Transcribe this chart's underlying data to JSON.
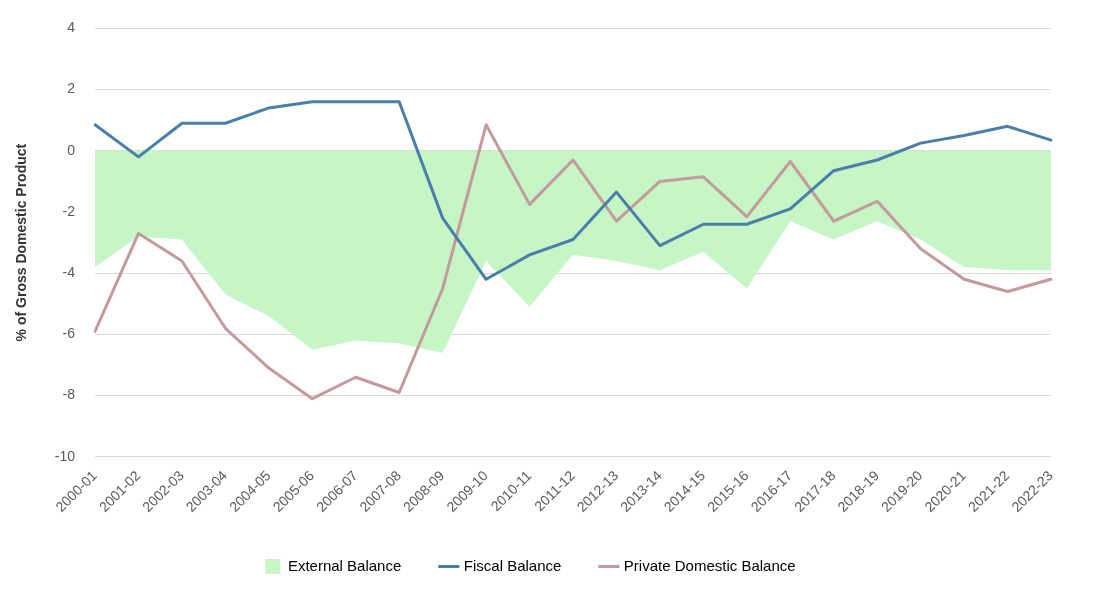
{
  "chart_data": {
    "type": "line",
    "ylabel": "% of Gross Domestic Product",
    "categories": [
      "2000-01",
      "2001-02",
      "2002-03",
      "2003-04",
      "2004-05",
      "2005-06",
      "2006-07",
      "2007-08",
      "2008-09",
      "2009-10",
      "2010-11",
      "2011-12",
      "2012-13",
      "2013-14",
      "2014-15",
      "2015-16",
      "2016-17",
      "2017-18",
      "2018-19",
      "2019-20",
      "2020-21",
      "2021-22",
      "2022-23"
    ],
    "series": [
      {
        "name": "External Balance",
        "type": "area",
        "color": "#c6f5c6",
        "values": [
          -3.8,
          -2.8,
          -2.9,
          -4.7,
          -5.4,
          -6.5,
          -6.2,
          -6.3,
          -6.6,
          -3.6,
          -5.1,
          -3.4,
          -3.6,
          -3.9,
          -3.3,
          -4.5,
          -2.3,
          -2.9,
          -2.3,
          -2.9,
          -3.8,
          -3.9,
          -3.9
        ]
      },
      {
        "name": "Fiscal Balance",
        "type": "line",
        "color": "#4a7eab",
        "values": [
          0.85,
          -0.2,
          0.9,
          0.9,
          1.4,
          1.6,
          1.6,
          1.6,
          -2.2,
          -4.2,
          -3.4,
          -2.9,
          -1.35,
          -3.1,
          -2.4,
          -2.4,
          -1.9,
          -0.65,
          -0.3,
          0.25,
          0.5,
          0.8,
          0.35
        ]
      },
      {
        "name": "Private Domestic Balance",
        "type": "line",
        "color": "#c49a9a",
        "values": [
          -5.9,
          -2.7,
          -3.6,
          -5.8,
          -7.1,
          -8.1,
          -7.4,
          -7.9,
          -4.5,
          0.85,
          -1.75,
          -0.3,
          -2.3,
          -1.0,
          -0.85,
          -2.15,
          -0.35,
          -2.3,
          -1.65,
          -3.2,
          -4.2,
          -4.6,
          -4.2
        ]
      }
    ],
    "ylim": [
      -10,
      4
    ],
    "yticks": [
      -10,
      -8,
      -6,
      -4,
      -2,
      0,
      2,
      4
    ],
    "grid": "y",
    "legend": "bottom",
    "marker": "none",
    "line_style": "solid"
  }
}
